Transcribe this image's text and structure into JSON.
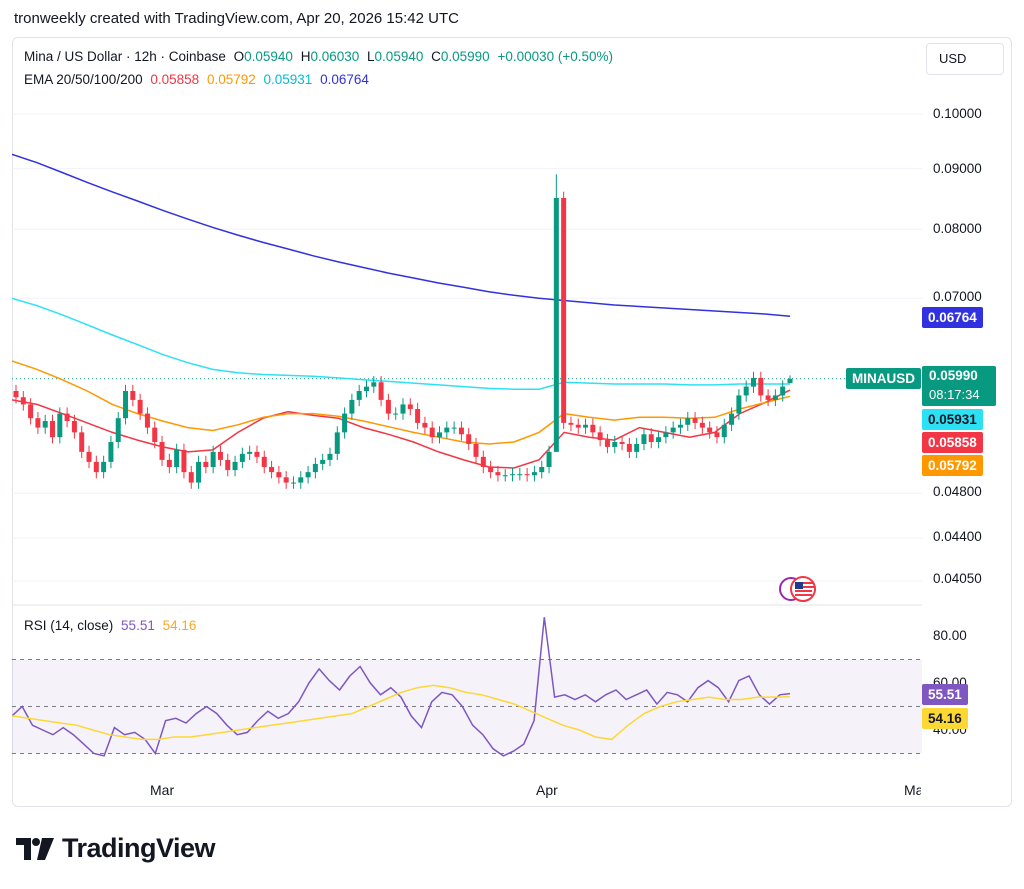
{
  "header": {
    "credit": "tronweekly created with TradingView.com, Apr 20, 2026 15:42 UTC"
  },
  "symbol": {
    "title": "Mina / US Dollar · 12h · Coinbase",
    "o_label": "O",
    "o": "0.05940",
    "h_label": "H",
    "h": "0.06030",
    "l_label": "L",
    "l": "0.05940",
    "c_label": "C",
    "c": "0.05990",
    "change": "+0.00030 (+0.50%)"
  },
  "ema": {
    "title": "EMA 20/50/100/200",
    "values": [
      "0.05858",
      "0.05792",
      "0.05931",
      "0.06764"
    ],
    "colors": [
      "#f23645",
      "#ff9800",
      "#2de1f5",
      "#3131e0"
    ]
  },
  "currency_button": "USD",
  "price_axis": [
    "0.10000",
    "0.09000",
    "0.08000",
    "0.07000",
    "0.04800",
    "0.04400",
    "0.04050"
  ],
  "tags": {
    "ema200": "0.06764",
    "symbol": "MINAUSD",
    "price": "0.05990",
    "countdown": "08:17:34",
    "ema100": "0.05931",
    "ema20": "0.05858",
    "ema50": "0.05792",
    "rsi": "55.51",
    "rsi_ma": "54.16"
  },
  "rsi": {
    "title": "RSI (14, close)",
    "value": "55.51",
    "ma": "54.16",
    "axis": [
      "80.00",
      "60.00",
      "40.00"
    ]
  },
  "time_axis": [
    "Mar",
    "Apr",
    "Ma"
  ],
  "brand": "TradingView",
  "colors": {
    "up": "#089981",
    "down": "#f23645",
    "ema20": "#f23645",
    "ema50": "#ff9800",
    "ema100": "#2de1f5",
    "ema200": "#3131e0",
    "rsi": "#7e57c2",
    "rsi_ma": "#fdd835"
  },
  "chart_data": [
    {
      "type": "line",
      "subtype": "candlestick",
      "title": "Mina / US Dollar · 12h · Coinbase",
      "scale": "log",
      "x_ticks": [
        "Mar",
        "Apr",
        "Ma"
      ],
      "ohlc_last": {
        "open": 0.0594,
        "high": 0.0603,
        "low": 0.0594,
        "close": 0.0599
      },
      "candle_closes": [
        0.0578,
        0.057,
        0.0555,
        0.0545,
        0.0552,
        0.0535,
        0.056,
        0.0552,
        0.054,
        0.052,
        0.051,
        0.05,
        0.051,
        0.053,
        0.0555,
        0.0585,
        0.0575,
        0.056,
        0.0545,
        0.053,
        0.0512,
        0.0505,
        0.0522,
        0.05,
        0.049,
        0.051,
        0.0505,
        0.052,
        0.0512,
        0.0502,
        0.051,
        0.0518,
        0.052,
        0.0515,
        0.0505,
        0.05,
        0.0495,
        0.049,
        0.049,
        0.0495,
        0.05,
        0.0508,
        0.0512,
        0.0518,
        0.054,
        0.056,
        0.0575,
        0.0585,
        0.059,
        0.0595,
        0.0575,
        0.056,
        0.056,
        0.057,
        0.0565,
        0.055,
        0.0545,
        0.0535,
        0.054,
        0.0545,
        0.0545,
        0.0538,
        0.0528,
        0.0515,
        0.0505,
        0.05,
        0.0497,
        0.0497,
        0.0498,
        0.0498,
        0.0497,
        0.05,
        0.0505,
        0.052,
        0.085,
        0.055,
        0.0548,
        0.0545,
        0.0548,
        0.054,
        0.0532,
        0.0525,
        0.053,
        0.0528,
        0.052,
        0.0528,
        0.0538,
        0.053,
        0.0535,
        0.054,
        0.0545,
        0.0548,
        0.0555,
        0.055,
        0.0545,
        0.054,
        0.0535,
        0.0548,
        0.056,
        0.058,
        0.059,
        0.06,
        0.058,
        0.0575,
        0.058,
        0.059,
        0.0599
      ],
      "series": [
        {
          "name": "EMA 20",
          "last": 0.05858,
          "values": [
            0.0575,
            0.057,
            0.056,
            0.055,
            0.054,
            0.0532,
            0.0525,
            0.052,
            0.0522,
            0.054,
            0.0555,
            0.0562,
            0.0558,
            0.0555,
            0.0545,
            0.0538,
            0.053,
            0.052,
            0.0512,
            0.0505,
            0.0504,
            0.0512,
            0.054,
            0.0535,
            0.0532,
            0.0545,
            0.054,
            0.0535,
            0.054,
            0.056,
            0.0572,
            0.0586
          ]
        },
        {
          "name": "EMA 50",
          "last": 0.05792,
          "values": [
            0.062,
            0.061,
            0.0598,
            0.0585,
            0.057,
            0.056,
            0.0552,
            0.0545,
            0.0542,
            0.0548,
            0.0556,
            0.056,
            0.056,
            0.0557,
            0.0552,
            0.0546,
            0.054,
            0.0535,
            0.053,
            0.0528,
            0.053,
            0.054,
            0.056,
            0.0556,
            0.0553,
            0.0556,
            0.0556,
            0.0555,
            0.0556,
            0.0565,
            0.0572,
            0.0579
          ]
        },
        {
          "name": "EMA 100",
          "last": 0.05931,
          "values": [
            0.07,
            0.069,
            0.0678,
            0.0665,
            0.0652,
            0.064,
            0.0628,
            0.0618,
            0.061,
            0.0606,
            0.0604,
            0.0603,
            0.0602,
            0.06,
            0.0598,
            0.0596,
            0.0594,
            0.0592,
            0.059,
            0.0588,
            0.0587,
            0.0587,
            0.0595,
            0.0594,
            0.0593,
            0.0593,
            0.0593,
            0.0592,
            0.0592,
            0.0593,
            0.0593,
            0.0593
          ]
        },
        {
          "name": "EMA 200",
          "last": 0.06764,
          "values": [
            0.0925,
            0.091,
            0.0893,
            0.0876,
            0.086,
            0.0845,
            0.083,
            0.0816,
            0.0803,
            0.0791,
            0.078,
            0.077,
            0.076,
            0.0751,
            0.0743,
            0.0735,
            0.0728,
            0.0721,
            0.0715,
            0.0709,
            0.0704,
            0.07,
            0.0697,
            0.0694,
            0.0691,
            0.0689,
            0.0687,
            0.0685,
            0.0683,
            0.0681,
            0.0679,
            0.0676
          ]
        }
      ]
    },
    {
      "type": "line",
      "title": "RSI (14, close)",
      "ylim": [
        20,
        90
      ],
      "bands": [
        30,
        50,
        70
      ],
      "series": [
        {
          "name": "RSI",
          "last": 55.51,
          "values": [
            46,
            50,
            42,
            40,
            38,
            41,
            38,
            34,
            30,
            29,
            41,
            38,
            39,
            36,
            30,
            44,
            45,
            43,
            47,
            50,
            47,
            42,
            38,
            39,
            44,
            48,
            45,
            47,
            52,
            60,
            66,
            61,
            57,
            63,
            67,
            60,
            55,
            58,
            54,
            46,
            41,
            52,
            56,
            55,
            50,
            42,
            38,
            32,
            29,
            31,
            34,
            44,
            88,
            54,
            55,
            53,
            55,
            52,
            55,
            57,
            53,
            55,
            57,
            51,
            56,
            55,
            52,
            58,
            61,
            58,
            52,
            61,
            63,
            55,
            51,
            55,
            55.5
          ]
        },
        {
          "name": "RSI-based MA",
          "last": 54.16,
          "values": [
            46,
            45,
            44,
            43,
            42,
            40,
            38,
            37,
            36,
            36,
            37,
            37,
            38,
            39,
            40,
            41,
            42,
            43,
            44,
            45,
            46,
            47,
            50,
            53,
            56,
            58,
            59,
            58,
            56,
            55,
            53,
            51,
            48,
            45,
            42,
            40,
            37,
            36,
            42,
            47,
            50,
            52,
            53,
            54,
            53,
            53,
            54,
            54,
            54.16
          ]
        }
      ]
    }
  ]
}
